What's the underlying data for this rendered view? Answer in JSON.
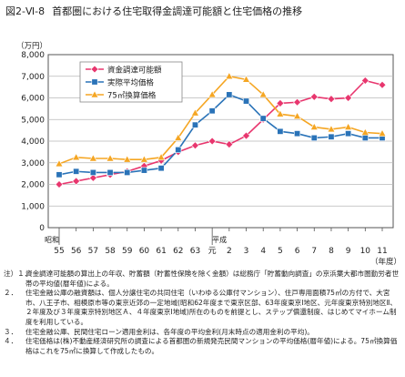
{
  "figure": {
    "number": "図2-Ⅵ-8",
    "title": "首都圏における住宅取得金調達可能額と住宅価格の推移"
  },
  "chart_data": {
    "type": "line",
    "unit_label": "（万円）",
    "xlabel": "（年度）",
    "era_labels": [
      "昭和",
      "平成"
    ],
    "x": [
      "55",
      "56",
      "57",
      "58",
      "59",
      "60",
      "61",
      "62",
      "63",
      "元",
      "2",
      "3",
      "4",
      "5",
      "6",
      "7",
      "8",
      "9",
      "10",
      "11"
    ],
    "ylim": [
      0,
      8000
    ],
    "yticks": [
      "0",
      "1,000",
      "2,000",
      "3,000",
      "4,000",
      "5,000",
      "6,000",
      "7,000",
      "8,000"
    ],
    "grid": true,
    "legend_position": "top-left",
    "series": [
      {
        "name": "資金調達可能額",
        "color": "#e8366e",
        "marker": "diamond",
        "values": [
          2000,
          2150,
          2300,
          2450,
          2600,
          2850,
          3100,
          3500,
          3800,
          4000,
          3850,
          4250,
          5000,
          5750,
          5800,
          6050,
          5950,
          6000,
          6800,
          6600
        ]
      },
      {
        "name": "実際平均価格",
        "color": "#2a73b8",
        "marker": "square",
        "values": [
          2450,
          2600,
          2550,
          2550,
          2550,
          2650,
          2750,
          3600,
          4750,
          5400,
          6150,
          5850,
          5050,
          4450,
          4350,
          4150,
          4200,
          4350,
          4150,
          4150
        ]
      },
      {
        "name": "75㎡換算価格",
        "color": "#f5a623",
        "marker": "triangle",
        "values": [
          2950,
          3250,
          3200,
          3200,
          3150,
          3150,
          3250,
          4150,
          5300,
          6150,
          7000,
          6850,
          6150,
          5250,
          5150,
          4650,
          4550,
          4650,
          4400,
          4350
        ]
      }
    ]
  },
  "notes": [
    {
      "num": "注）１．",
      "text": "資金調達可能額の算出上の年収、貯蓄額（貯蓄性保険を除く金額）は総務庁「貯蓄動向調査」の京浜葉大都市圏勤労者世帯の平均値(暦年値)による。"
    },
    {
      "num": "２．",
      "text": "住宅金融公庫の融資額は、個人分譲住宅の共同住宅（いわゆる公庫付マンション）、住戸専用面積75㎡の方付で、大宮市、八王子市、相模原市等の東京近郊の一定地域(昭和62年度まで東京区部、63年度東京Ⅰ地区、元年度東京特別地区Ⅱ、２年度及び３年度東京特別地区Ａ、４年度東京Ⅰ地域)所在のものを前提とし、ステップ償還制度、はじめてマイホーム制度を利用している。"
    },
    {
      "num": "３．",
      "text": "住宅金融公庫、民間住宅ローン適用金利は、各年度の平均金利(月末時点の適用金利の平均)。"
    },
    {
      "num": "４．",
      "text": "住宅価格は(株)不動産経済研究所の調査による首都圏の新規発売民間マンションの平均価格(暦年値)による。75㎡換算価格はこれを75㎡に換算して作成したもの。"
    }
  ]
}
